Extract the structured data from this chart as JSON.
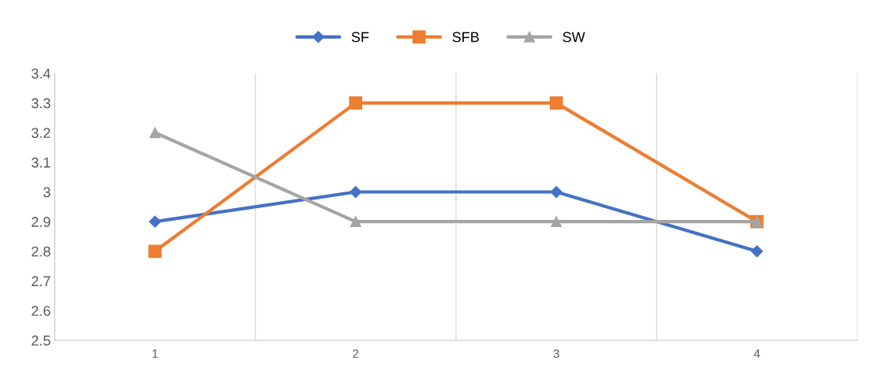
{
  "chart_data": {
    "type": "line",
    "categories": [
      "1",
      "2",
      "3",
      "4"
    ],
    "series": [
      {
        "name": "SF",
        "color": "#4472c4",
        "marker": "diamond",
        "values": [
          2.9,
          3.0,
          3.0,
          2.8
        ]
      },
      {
        "name": "SFB",
        "color": "#ed7d31",
        "marker": "square",
        "values": [
          2.8,
          3.3,
          3.3,
          2.9
        ]
      },
      {
        "name": "SW",
        "color": "#a5a5a5",
        "marker": "triangle",
        "values": [
          3.2,
          2.9,
          2.9,
          2.9
        ]
      }
    ],
    "ylim": [
      2.5,
      3.4
    ],
    "yticks": [
      2.5,
      2.6,
      2.7,
      2.8,
      2.9,
      3,
      3.1,
      3.2,
      3.3,
      3.4
    ],
    "grid": "x",
    "legend": "top",
    "line_style": "solid"
  }
}
